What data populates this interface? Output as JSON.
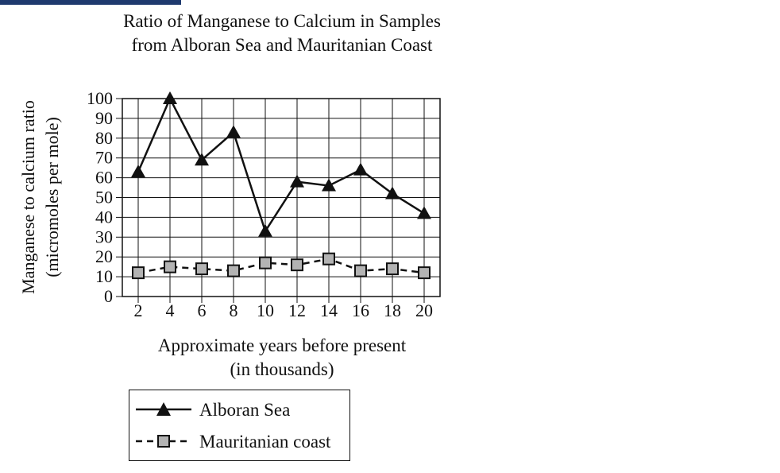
{
  "chart_data": {
    "type": "line",
    "title_lines": [
      "Ratio of Manganese to Calcium in Samples",
      "from Alboran Sea and Mauritanian Coast"
    ],
    "xlabel_lines": [
      "Approximate years before present",
      "(in thousands)"
    ],
    "ylabel_lines": [
      "Manganese to calcium ratio",
      "(micromoles per mole)"
    ],
    "x": [
      2,
      4,
      6,
      8,
      10,
      12,
      14,
      16,
      18,
      20
    ],
    "x_tick_labels": [
      "2",
      "4",
      "6",
      "8",
      "10",
      "12",
      "14",
      "16",
      "18",
      "20"
    ],
    "y_ticks": [
      0,
      10,
      20,
      30,
      40,
      50,
      60,
      70,
      80,
      90,
      100
    ],
    "ylim": [
      0,
      100
    ],
    "grid": true,
    "legend_position": "bottom",
    "series": [
      {
        "name": "Alboran Sea",
        "marker": "triangle",
        "line": "solid",
        "color": "#111111",
        "values": [
          63,
          100,
          69,
          83,
          33,
          58,
          56,
          64,
          52,
          42
        ]
      },
      {
        "name": "Mauritanian coast",
        "marker": "square",
        "line": "dashed",
        "color": "#111111",
        "marker_fill": "#b3b3b3",
        "values": [
          12,
          15,
          14,
          13,
          17,
          16,
          19,
          13,
          14,
          12
        ]
      }
    ]
  }
}
